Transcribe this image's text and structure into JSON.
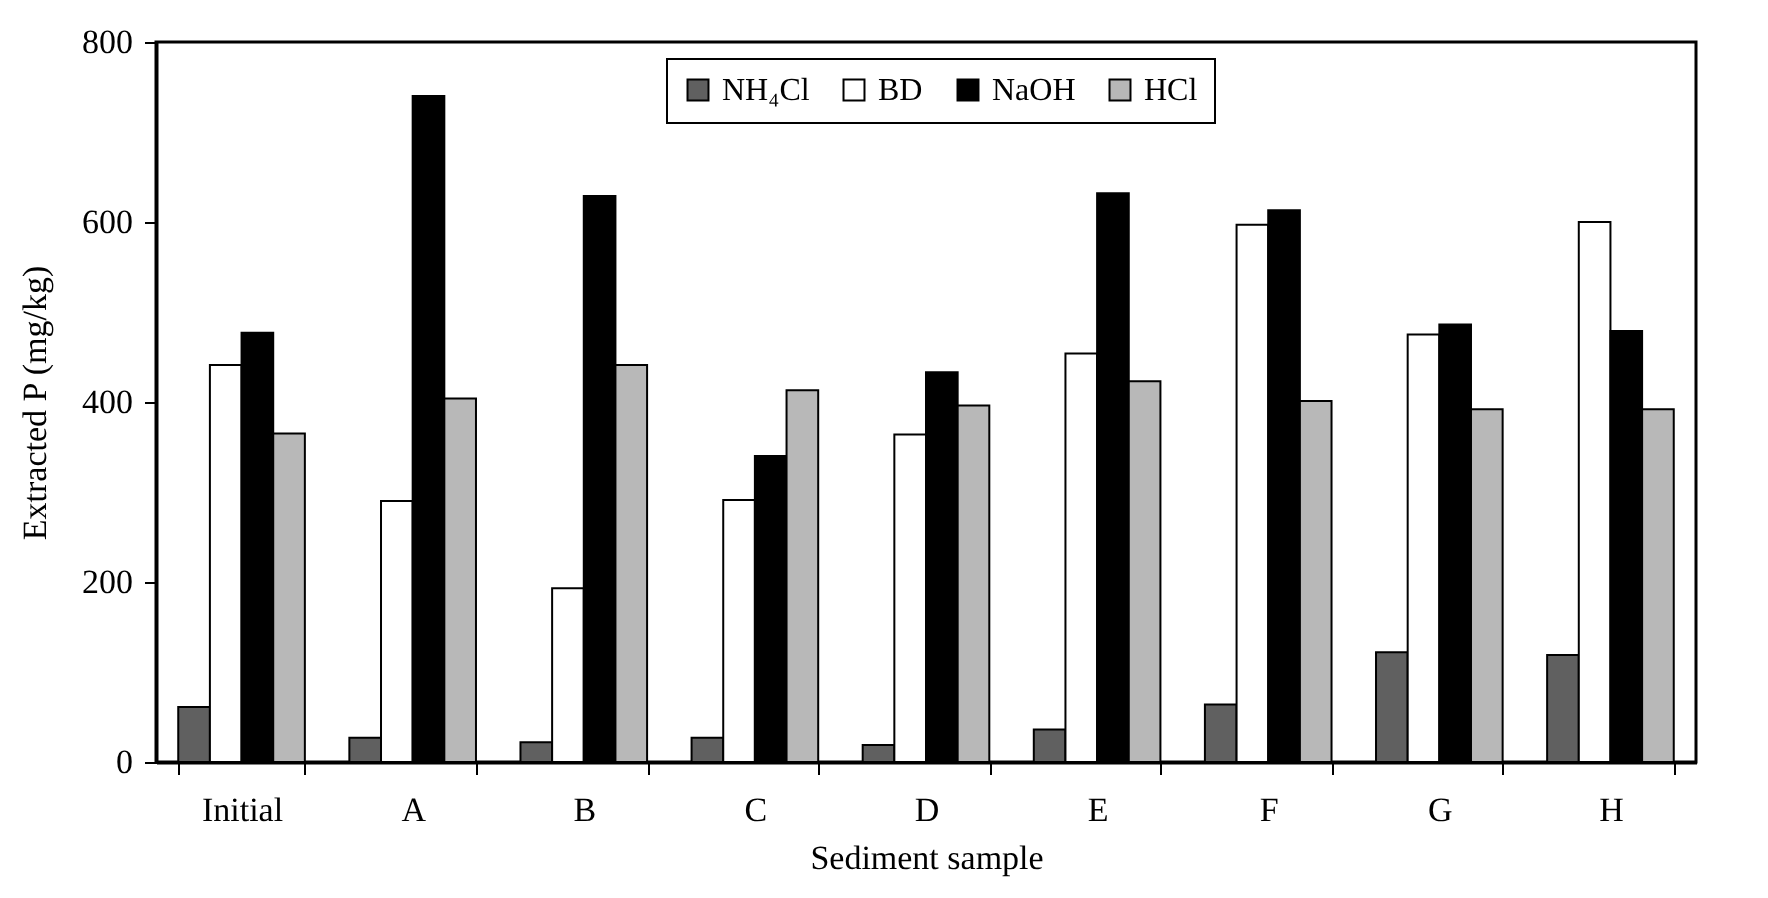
{
  "chart_data": {
    "type": "bar",
    "xlabel": "Sediment sample",
    "ylabel": "Extracted P (mg/kg)",
    "categories": [
      "Initial",
      "A",
      "B",
      "C",
      "D",
      "E",
      "F",
      "G",
      "H"
    ],
    "series": [
      {
        "name": "NH₄Cl",
        "color": "#606060",
        "values": [
          61,
          27,
          22,
          27,
          19,
          36,
          64,
          122,
          119
        ]
      },
      {
        "name": "BD",
        "color": "#ffffff",
        "values": [
          441,
          290,
          193,
          291,
          364,
          454,
          597,
          475,
          600
        ]
      },
      {
        "name": "NaOH",
        "color": "#000000",
        "values": [
          477,
          740,
          629,
          340,
          433,
          632,
          613,
          486,
          479
        ]
      },
      {
        "name": "HCl",
        "color": "#b8b8b8",
        "values": [
          365,
          404,
          441,
          413,
          396,
          423,
          401,
          392,
          392
        ]
      }
    ],
    "ylim": [
      0,
      800
    ],
    "yticks": [
      0,
      200,
      400,
      600,
      800
    ],
    "grid": false,
    "legend": "top"
  }
}
